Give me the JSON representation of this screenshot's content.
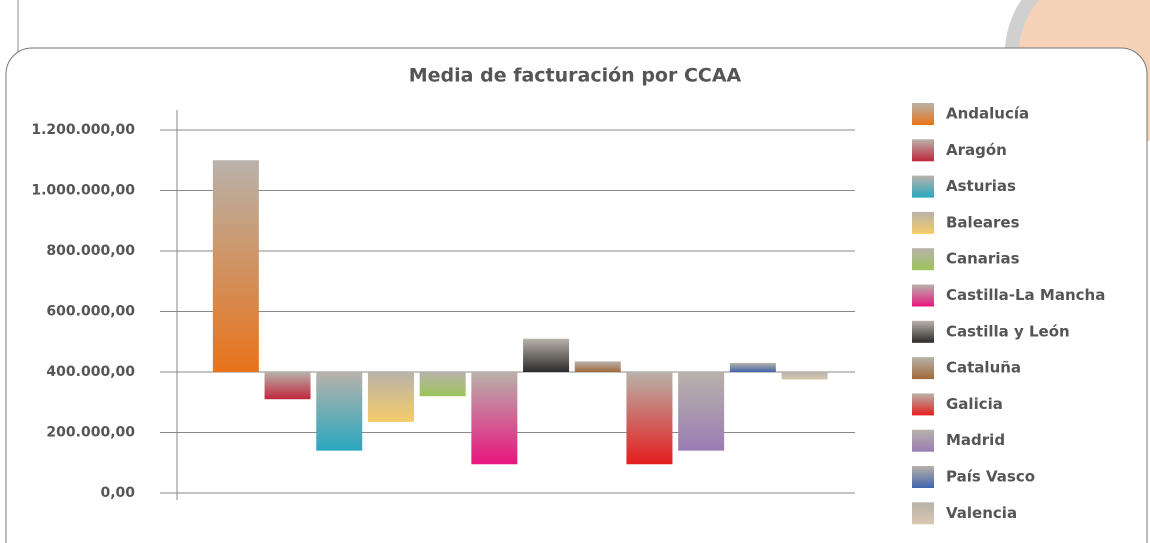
{
  "chart_data": {
    "type": "bar",
    "title": "Media de facturación por CCAA",
    "categories": [
      "Andalucía",
      "Aragón",
      "Asturias",
      "Baleares",
      "Canarias",
      "Castilla-La Mancha",
      "Castilla y León",
      "Cataluña",
      "Galicia",
      "Madrid",
      "País Vasco",
      "Valencia"
    ],
    "values": [
      1100000,
      310000,
      140000,
      235000,
      320000,
      95000,
      510000,
      435000,
      95000,
      140000,
      430000,
      375000
    ],
    "colors": [
      "#e8731a",
      "#c0263d",
      "#2aa7bf",
      "#f5cc6a",
      "#9cc45a",
      "#e8157f",
      "#2b2b2b",
      "#a0683a",
      "#e41e1e",
      "#9a7cb5",
      "#3f64aa",
      "#d8c8b0"
    ],
    "ylim": [
      0,
      1200000
    ],
    "yticks": [
      {
        "value": 0,
        "label": "0,00"
      },
      {
        "value": 200000,
        "label": "200.000,00"
      },
      {
        "value": 400000,
        "label": "400.000,00"
      },
      {
        "value": 600000,
        "label": "600.000,00"
      },
      {
        "value": 800000,
        "label": "800.000,00"
      },
      {
        "value": 1000000,
        "label": "1.000.000,00"
      },
      {
        "value": 1200000,
        "label": "1.200.000,00"
      }
    ],
    "x_axis_crosses": 400000,
    "grid": true,
    "legend": "right"
  }
}
